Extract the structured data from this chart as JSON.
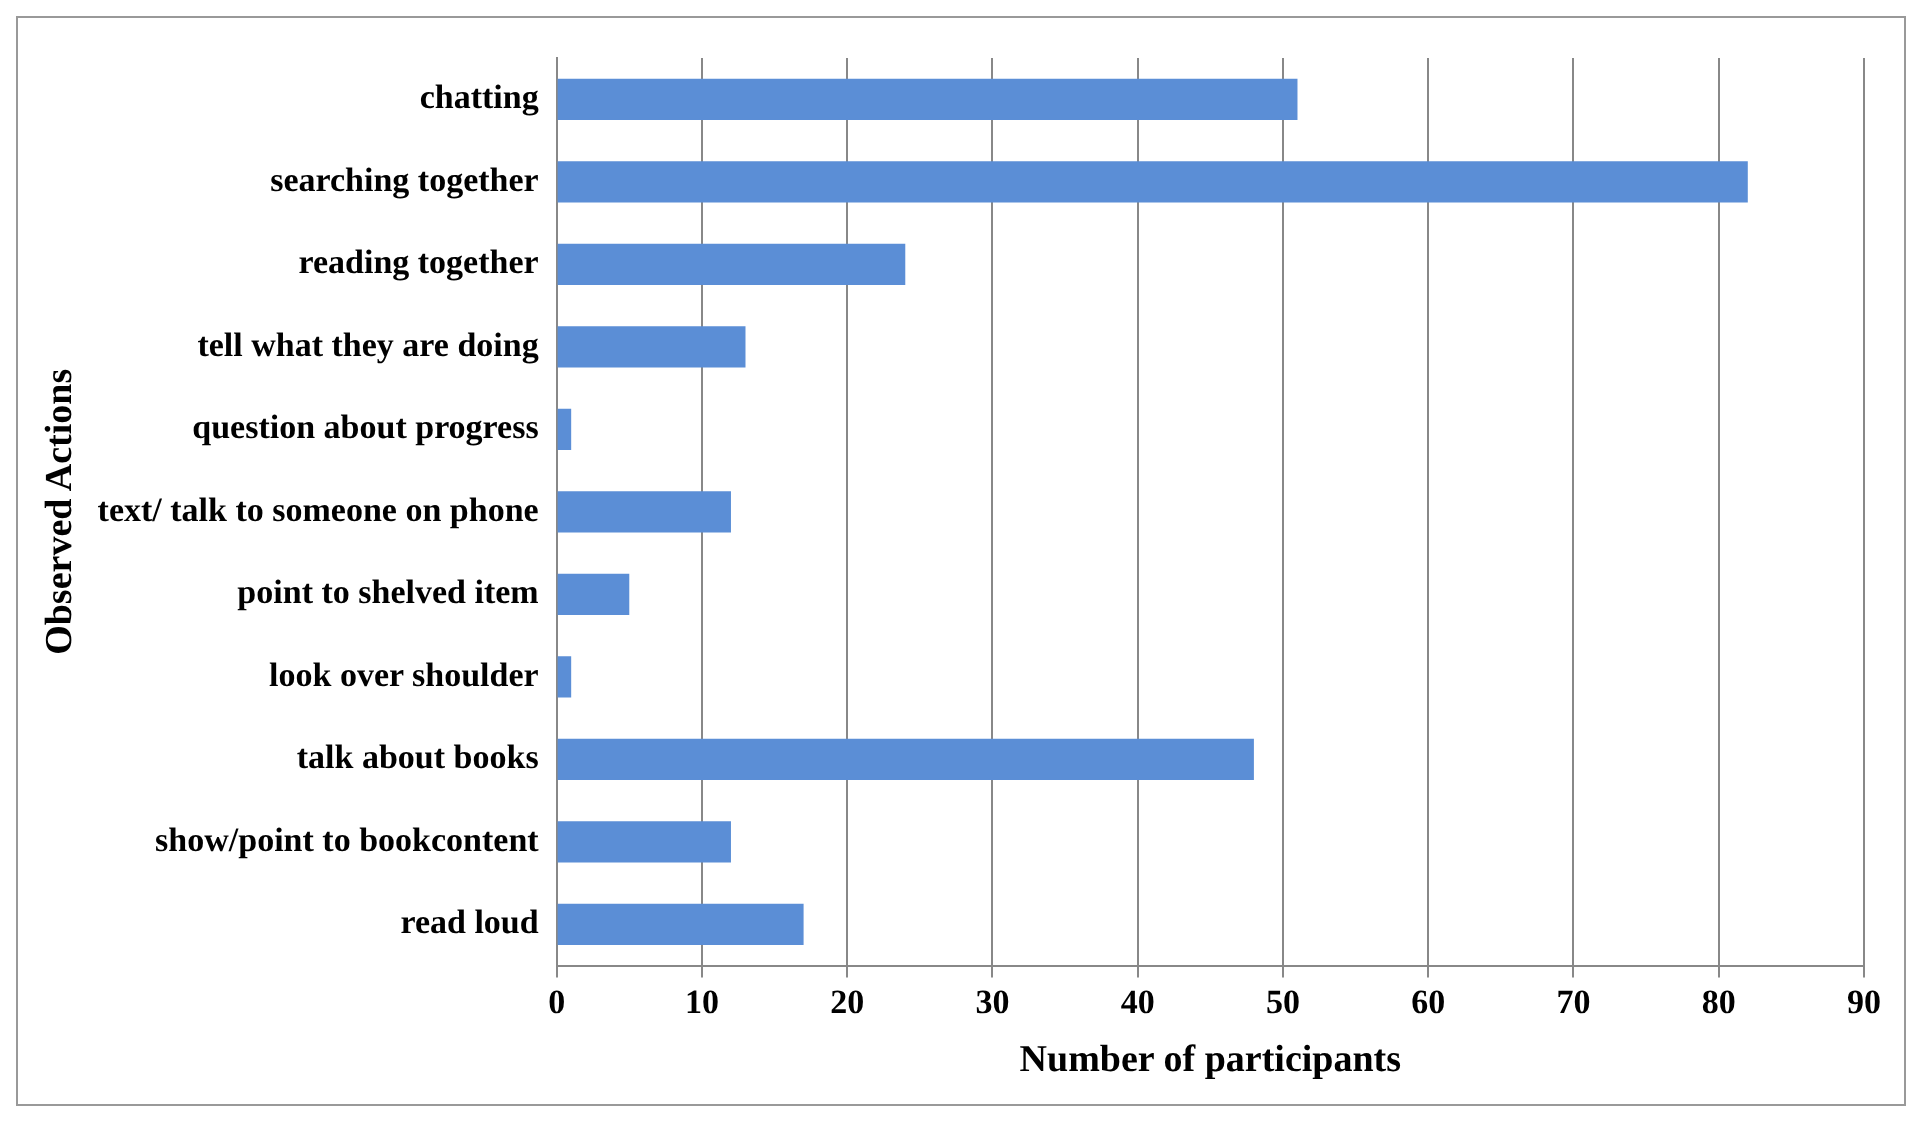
{
  "chart_data": {
    "type": "bar",
    "orientation": "horizontal",
    "xlabel": "Number of participants",
    "ylabel": "Observed Actions",
    "categories": [
      "chatting",
      "searching together",
      "reading together",
      "tell what they are doing",
      "question about progress",
      "text/ talk to someone on phone",
      "point to shelved item",
      "look over shoulder",
      "talk about books",
      "show/point to bookcontent",
      "read loud"
    ],
    "values": [
      51,
      82,
      24,
      13,
      1,
      12,
      5,
      1,
      48,
      12,
      17
    ],
    "color": "#5b8ed6",
    "xlim": [
      0,
      90
    ],
    "xticks": [
      0,
      10,
      20,
      30,
      40,
      50,
      60,
      70,
      80,
      90
    ],
    "grid": "x",
    "legend": false
  }
}
